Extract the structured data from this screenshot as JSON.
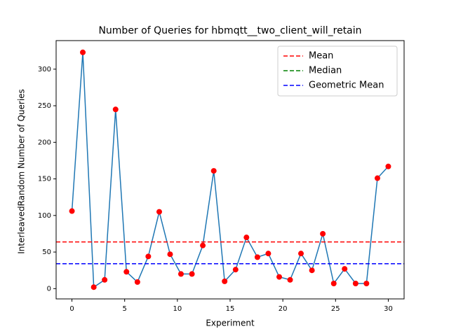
{
  "chart_data": {
    "type": "line",
    "title": "Number of Queries for hbmqtt__two_client_will_retain",
    "xlabel": "Experiment",
    "ylabel": "InterleavedRandom Number of Queries",
    "x": [
      0,
      1.03,
      2.07,
      3.1,
      4.14,
      5.17,
      6.21,
      7.24,
      8.28,
      9.31,
      10.34,
      11.38,
      12.41,
      13.45,
      14.48,
      15.52,
      16.55,
      17.59,
      18.62,
      19.66,
      20.69,
      21.72,
      22.76,
      23.79,
      24.83,
      25.86,
      26.9,
      27.93,
      28.97,
      30
    ],
    "series": [
      {
        "color": "#1f77b4",
        "marker_color": "#ff0000",
        "values": [
          106,
          323,
          2,
          12,
          245,
          23,
          9,
          44,
          105,
          47,
          20,
          20,
          59,
          161,
          10,
          26,
          70,
          43,
          48,
          16,
          12,
          48,
          25,
          75,
          7,
          27,
          7,
          7,
          151,
          167
        ]
      }
    ],
    "hlines": [
      {
        "name": "Mean",
        "color": "#ff0000",
        "value": 63.8
      },
      {
        "name": "Median",
        "color": "#008000",
        "value": 34
      },
      {
        "name": "Geometric Mean",
        "color": "#0000ff",
        "value": 34
      }
    ],
    "xlim": [
      -1.5,
      31.5
    ],
    "xticks": [
      0,
      5,
      10,
      15,
      20,
      25,
      30
    ],
    "ylim": [
      -14.05,
      339.05
    ],
    "yticks": [
      0,
      50,
      100,
      150,
      200,
      250,
      300
    ],
    "legend": "upper right",
    "grid": false
  }
}
